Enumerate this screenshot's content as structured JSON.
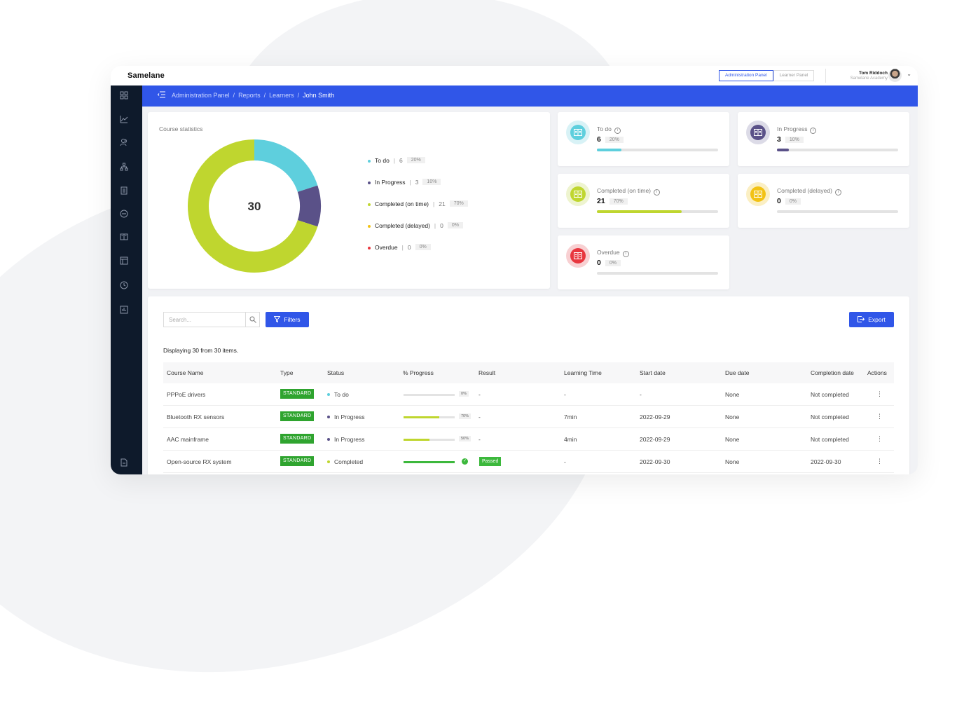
{
  "app": {
    "logo": "Samelane"
  },
  "topbar": {
    "admin_panel": "Administration Panel",
    "learner_panel": "Learner Panel",
    "user_name": "Tom Riddoch",
    "user_org": "Samelane Academy"
  },
  "breadcrumb": {
    "items": [
      "Administration Panel",
      "Reports",
      "Learners"
    ],
    "current": "John Smith"
  },
  "stats": {
    "title": "Course statistics",
    "total": "30",
    "legend": [
      {
        "label": "To do",
        "count": "6",
        "pct": "20%",
        "color": "#5ecfdd"
      },
      {
        "label": "In Progress",
        "count": "3",
        "pct": "10%",
        "color": "#5a5188"
      },
      {
        "label": "Completed (on time)",
        "count": "21",
        "pct": "70%",
        "color": "#bfd62f"
      },
      {
        "label": "Completed (delayed)",
        "count": "0",
        "pct": "0%",
        "color": "#f2c214"
      },
      {
        "label": "Overdue",
        "count": "0",
        "pct": "0%",
        "color": "#e8363e"
      }
    ]
  },
  "chart_data": {
    "type": "pie",
    "categories": [
      "To do",
      "In Progress",
      "Completed (on time)",
      "Completed (delayed)",
      "Overdue"
    ],
    "values": [
      6,
      3,
      21,
      0,
      0
    ],
    "colors": [
      "#5ecfdd",
      "#5a5188",
      "#bfd62f",
      "#f2c214",
      "#e8363e"
    ],
    "title": "Course statistics",
    "center_label": "30"
  },
  "stat_cards": [
    {
      "label": "To do",
      "value": "6",
      "pct": "20%",
      "fraction": 0.2,
      "color": "#5ecfdd",
      "ring": "#d8f2f6",
      "icon": "book-icon"
    },
    {
      "label": "In Progress",
      "value": "3",
      "pct": "10%",
      "fraction": 0.1,
      "color": "#5a5188",
      "ring": "#dcdbe7",
      "icon": "book-icon"
    },
    {
      "label": "Completed (on time)",
      "value": "21",
      "pct": "70%",
      "fraction": 0.7,
      "color": "#bfd62f",
      "ring": "#eef4cf",
      "icon": "book-icon"
    },
    {
      "label": "Completed (delayed)",
      "value": "0",
      "pct": "0%",
      "fraction": 0,
      "color": "#f2c214",
      "ring": "#fbefc3",
      "icon": "book-icon"
    },
    {
      "label": "Overdue",
      "value": "0",
      "pct": "0%",
      "fraction": 0,
      "color": "#e8363e",
      "ring": "#f8d0d2",
      "icon": "book-icon"
    }
  ],
  "table": {
    "search_placeholder": "Search...",
    "filters_label": "Filters",
    "export_label": "Export",
    "displaying": "Displaying 30 from 30 items.",
    "columns": [
      "Course Name",
      "Type",
      "Status",
      "% Progress",
      "Result",
      "Learning Time",
      "Start date",
      "Due date",
      "Completion date",
      "Actions"
    ],
    "rows": [
      {
        "name": "PPPoE drivers",
        "type": "STANDARD",
        "status": "To do",
        "status_color": "#5ecfdd",
        "progress": 0,
        "progress_label": "0%",
        "progress_color": "#bfd62f",
        "result": "-",
        "time": "-",
        "start": "-",
        "due": "None",
        "completion": "Not completed"
      },
      {
        "name": "Bluetooth RX sensors",
        "type": "STANDARD",
        "status": "In Progress",
        "status_color": "#5a5188",
        "progress": 0.7,
        "progress_label": "70%",
        "progress_color": "#bfd62f",
        "result": "-",
        "time": "7min",
        "start": "2022-09-29",
        "due": "None",
        "completion": "Not completed"
      },
      {
        "name": "AAC mainframe",
        "type": "STANDARD",
        "status": "In Progress",
        "status_color": "#5a5188",
        "progress": 0.5,
        "progress_label": "50%",
        "progress_color": "#bfd62f",
        "result": "-",
        "time": "4min",
        "start": "2022-09-29",
        "due": "None",
        "completion": "Not completed"
      },
      {
        "name": "Open-source RX system",
        "type": "STANDARD",
        "status": "Completed",
        "status_color": "#bfd62f",
        "progress": 1,
        "progress_label": "",
        "progress_color": "#3cb83c",
        "result": "Passed",
        "time": "-",
        "start": "2022-09-30",
        "due": "None",
        "completion": "2022-09-30"
      }
    ]
  },
  "sidebar": {
    "icons": [
      "dashboard-icon",
      "chart-icon",
      "users-icon",
      "structure-icon",
      "document-icon",
      "chat-icon",
      "book-icon",
      "board-icon",
      "clock-icon",
      "report-icon",
      "file-icon"
    ]
  }
}
